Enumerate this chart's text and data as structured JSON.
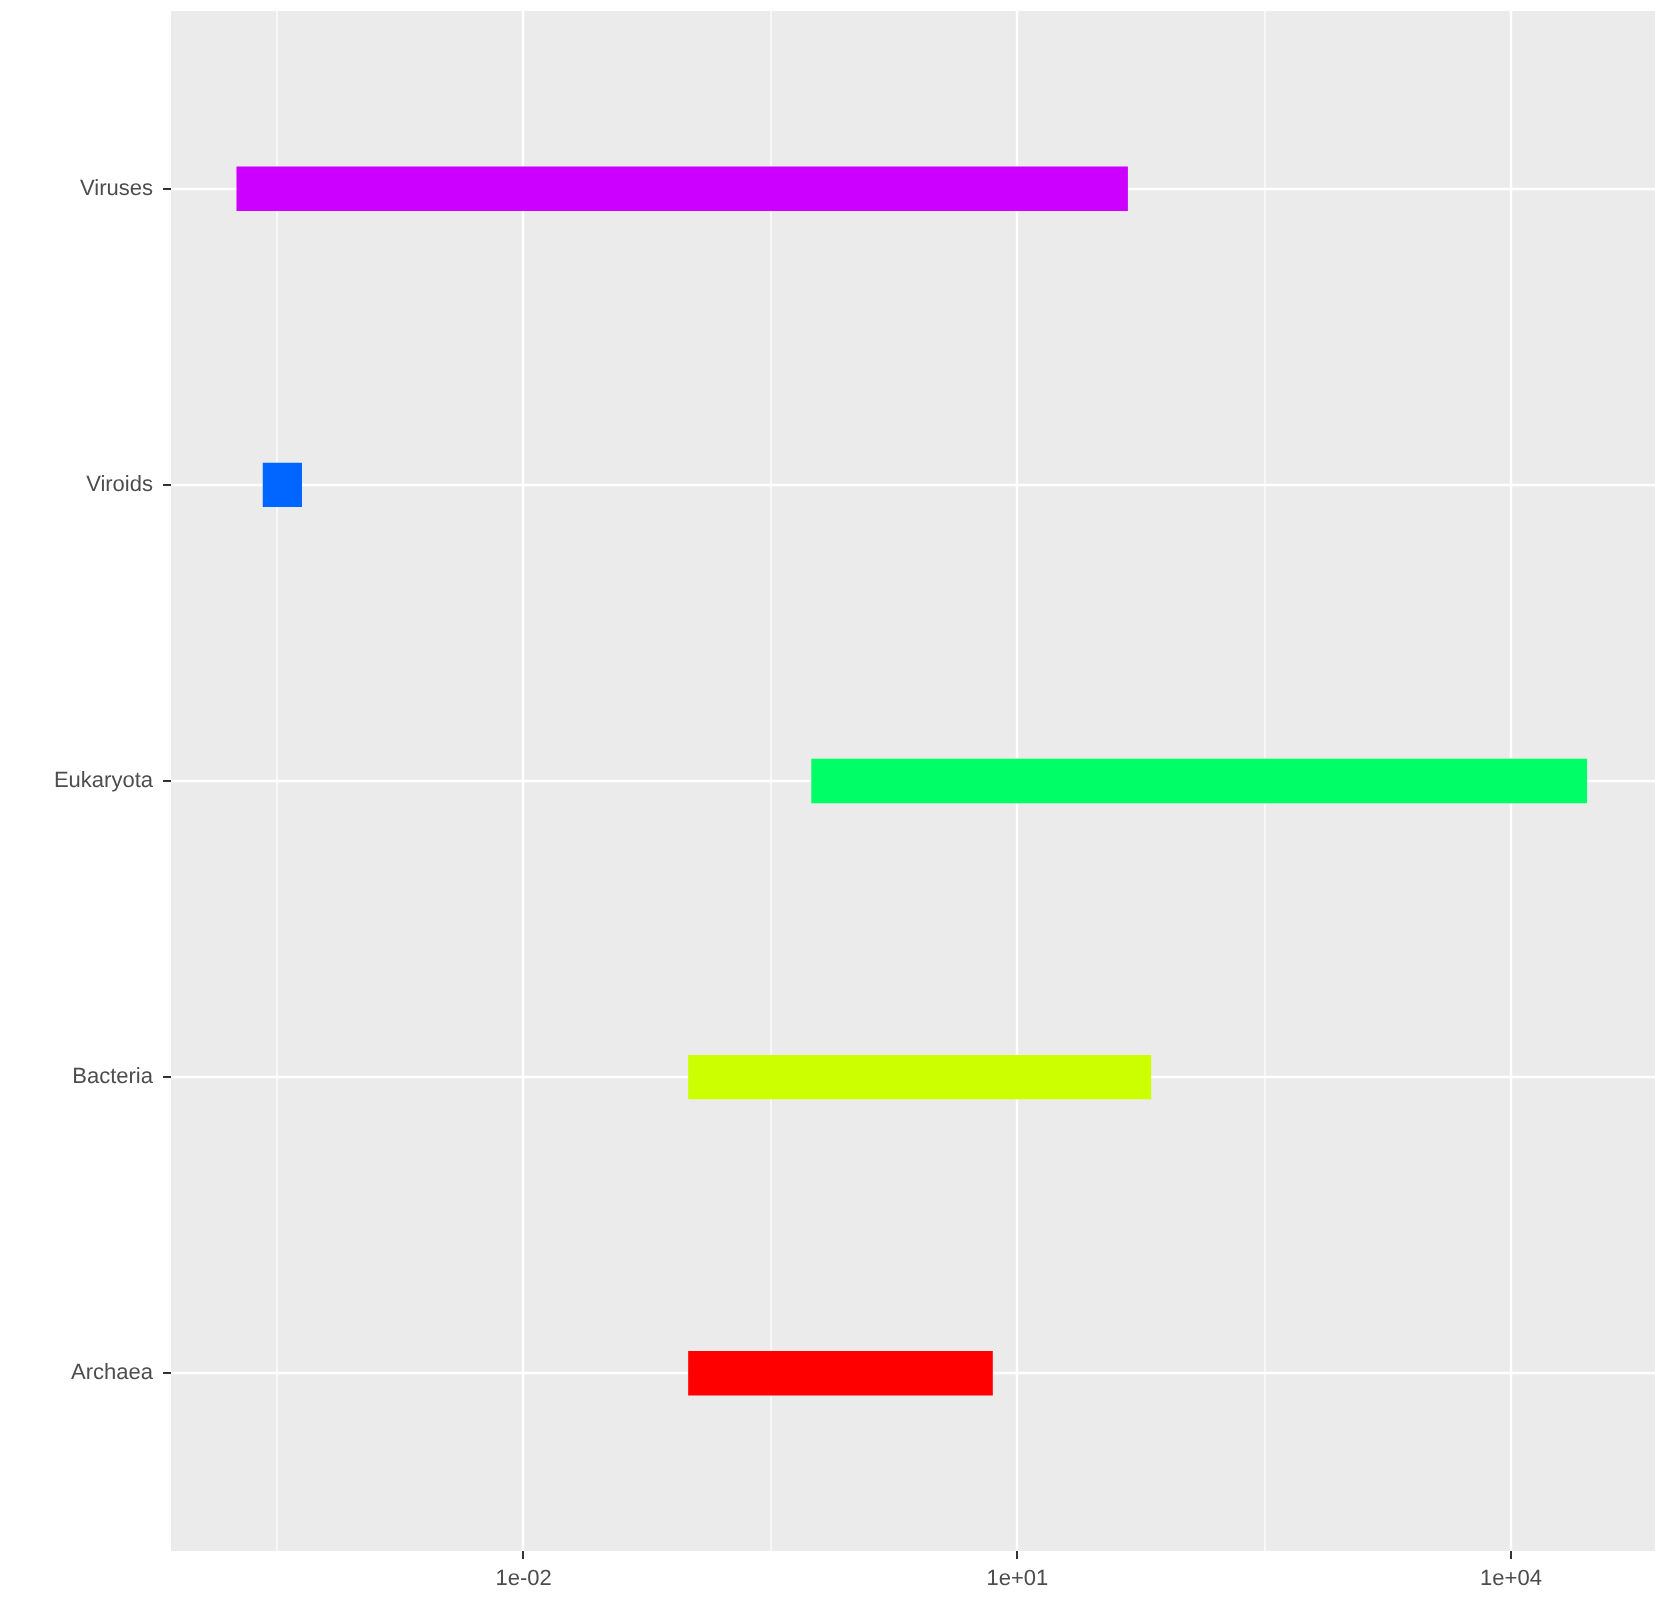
{
  "chart_data": {
    "type": "bar",
    "orientation": "horizontal",
    "log": "x",
    "grid": true,
    "categories": [
      "Viruses",
      "Viroids",
      "Eukaryota",
      "Bacteria",
      "Archaea"
    ],
    "base": [
      0.00018,
      0.00026,
      0.56,
      0.1,
      0.1
    ],
    "values": [
      47,
      0.00019,
      29000,
      65,
      7
    ],
    "colors": [
      "#cc00ff",
      "#0066ff",
      "#00ff66",
      "#ccff00",
      "#ff0000"
    ],
    "xlim": [
      7.2e-05,
      75000
    ],
    "xticks": [
      {
        "value": 0.01,
        "label": "1e-02"
      },
      {
        "value": 10,
        "label": "1e+01"
      },
      {
        "value": 10000,
        "label": "1e+04"
      }
    ]
  }
}
